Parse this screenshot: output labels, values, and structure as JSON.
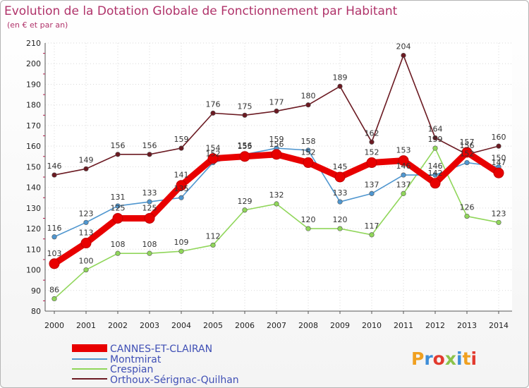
{
  "chart_data": {
    "type": "line",
    "title": "Evolution de la Dotation Globale de Fonctionnement par Habitant",
    "subtitle": "(en € et par an)",
    "xlabel": "",
    "ylabel": "",
    "ylim": [
      80,
      210
    ],
    "yticks": [
      80,
      90,
      100,
      110,
      120,
      130,
      140,
      150,
      160,
      170,
      180,
      190,
      200,
      210
    ],
    "x": [
      "2000",
      "2001",
      "2002",
      "2003",
      "2004",
      "2005",
      "2006",
      "2007",
      "2008",
      "2009",
      "2010",
      "2011",
      "2012",
      "2013",
      "2014"
    ],
    "grid": true,
    "legend_position": "bottom-left",
    "series": [
      {
        "name": "Orthoux-Sérignac-Quilhan",
        "color": "#6b1a22",
        "values": [
          146,
          149,
          156,
          156,
          159,
          176,
          175,
          177,
          180,
          189,
          162,
          204,
          164,
          156,
          160
        ],
        "labels": [
          "146",
          "149",
          "156",
          "156",
          "159",
          "176",
          "175",
          "177",
          "180",
          "189",
          "162",
          "204",
          "164",
          "156",
          "160"
        ]
      },
      {
        "name": "Crespian",
        "color": "#90d65a",
        "values": [
          86,
          100,
          108,
          108,
          109,
          112,
          129,
          132,
          120,
          120,
          117,
          137,
          159,
          126,
          123
        ],
        "labels": [
          "86",
          "100",
          "108",
          "108",
          "109",
          "112",
          "129",
          "132",
          "120",
          "120",
          "117",
          "137",
          "159",
          "126",
          "123"
        ]
      },
      {
        "name": "Montmirat",
        "color": "#4f96cf",
        "values": [
          116,
          123,
          131,
          133,
          135,
          152,
          156,
          159,
          158,
          133,
          137,
          146,
          146,
          152,
          150
        ],
        "labels": [
          "116",
          "123",
          "131",
          "133",
          "135",
          "152",
          "156",
          "159",
          "158",
          "133",
          "137",
          "146",
          "146",
          "152",
          "150"
        ]
      },
      {
        "name": "CANNES-ET-CLAIRAN",
        "color": "#e80000",
        "values": [
          103,
          113,
          125,
          125,
          141,
          154,
          155,
          156,
          152,
          145,
          152,
          153,
          142,
          157,
          147
        ],
        "labels": [
          "103",
          "113",
          "125",
          "125",
          "141",
          "154",
          "155",
          "156",
          "152",
          "145",
          "152",
          "153",
          "142",
          "157",
          "147"
        ]
      }
    ]
  },
  "legend": {
    "items": [
      "CANNES-ET-CLAIRAN",
      "Montmirat",
      "Crespian",
      "Orthoux-Sérignac-Quilhan"
    ]
  },
  "logo": {
    "text": "Proxiti"
  }
}
